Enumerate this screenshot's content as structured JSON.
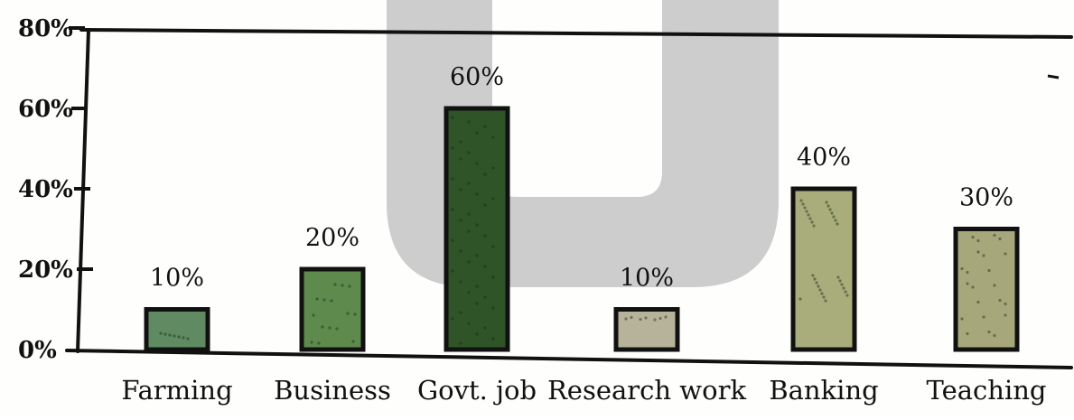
{
  "chart_data": {
    "type": "bar",
    "categories": [
      "Farming",
      "Business",
      "Govt. job",
      "Research work",
      "Banking",
      "Teaching"
    ],
    "values": [
      10,
      20,
      60,
      10,
      40,
      30
    ],
    "value_labels": [
      "10%",
      "20%",
      "60%",
      "10%",
      "40%",
      "30%"
    ],
    "y_ticks": [
      0,
      20,
      40,
      60,
      80
    ],
    "y_tick_labels": [
      "0%",
      "20%",
      "40%",
      "60%",
      "80%"
    ],
    "ylim": [
      0,
      80
    ],
    "title": "",
    "xlabel": "",
    "ylabel": "",
    "grid": false,
    "legend": "none",
    "bar_fill_colors": [
      "#5f8a62",
      "#5f8a4e",
      "#2f5428",
      "#b6b39a",
      "#a9ad7c",
      "#a7a77c"
    ],
    "watermark_color": "#c8c8c8"
  }
}
